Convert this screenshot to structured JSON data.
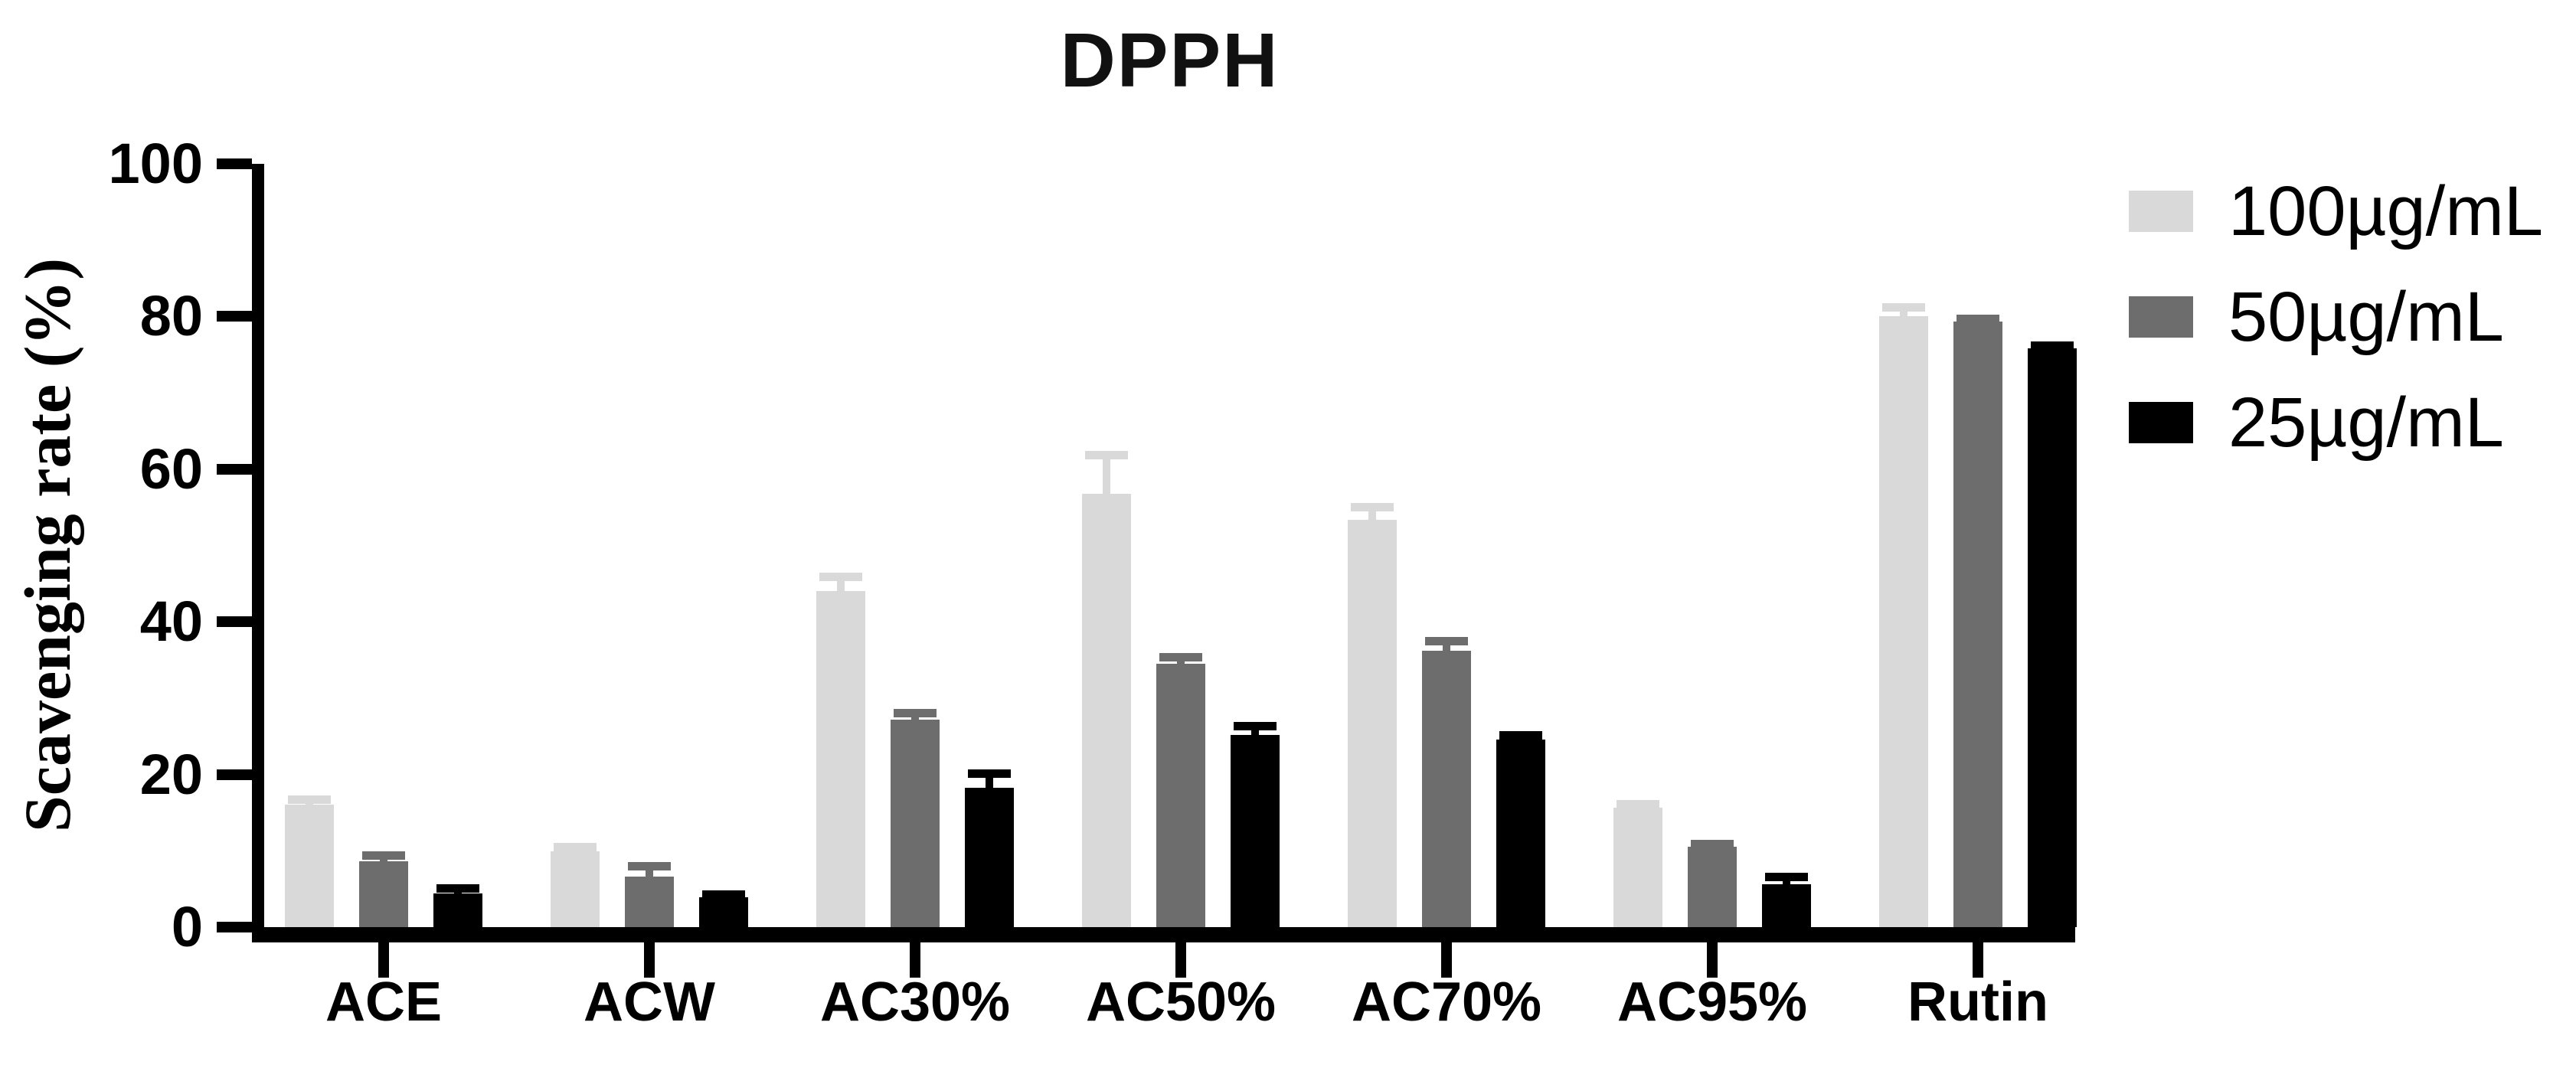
{
  "chart": {
    "title": "DPPH",
    "ylabel": "Scavenging rate (%)"
  },
  "chart_data": {
    "type": "bar",
    "title": "DPPH",
    "xlabel": "",
    "ylabel": "Scavenging rate (%)",
    "ylim": [
      0,
      100
    ],
    "yticks": [
      0,
      20,
      40,
      60,
      80,
      100
    ],
    "grid": false,
    "legend_position": "top-right",
    "error_bars": true,
    "background_color": "#ffffff",
    "axis_color": "#000000",
    "categories": [
      "ACE",
      "ACW",
      "AC30%",
      "AC50%",
      "AC70%",
      "AC95%",
      "Rutin"
    ],
    "series": [
      {
        "name": "100µg/mL",
        "color": "#d9d9d9",
        "values": [
          16.0,
          9.9,
          44.0,
          56.8,
          53.4,
          15.6,
          80.0
        ],
        "errors": [
          0.7,
          0.6,
          1.9,
          5.0,
          1.6,
          0.5,
          1.2
        ]
      },
      {
        "name": "50µg/mL",
        "color": "#6d6d6d",
        "values": [
          8.6,
          6.6,
          27.2,
          34.5,
          36.2,
          10.5,
          79.3
        ],
        "errors": [
          0.8,
          1.4,
          0.8,
          0.9,
          1.3,
          0.4,
          0.4
        ]
      },
      {
        "name": "25µg/mL",
        "color": "#000000",
        "values": [
          4.4,
          3.9,
          18.3,
          25.2,
          24.6,
          5.6,
          75.8
        ],
        "errors": [
          0.7,
          0.4,
          1.8,
          1.1,
          0.5,
          1.0,
          0.4
        ]
      }
    ]
  }
}
